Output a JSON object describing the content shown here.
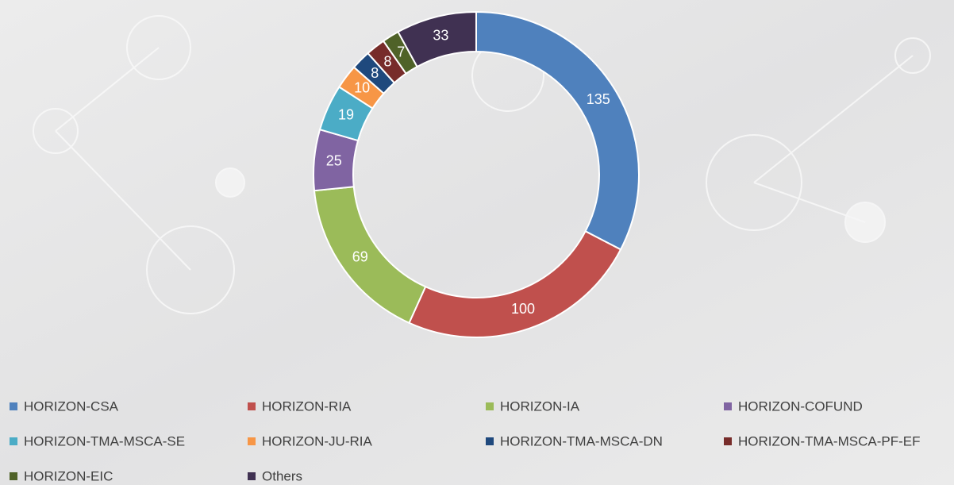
{
  "chart_data": {
    "type": "donut",
    "categories": [
      "HORIZON-CSA",
      "HORIZON-RIA",
      "HORIZON-IA",
      "HORIZON-COFUND",
      "HORIZON-TMA-MSCA-SE",
      "HORIZON-JU-RIA",
      "HORIZON-TMA-MSCA-DN",
      "HORIZON-TMA-MSCA-PF-EF",
      "HORIZON-EIC",
      "Others"
    ],
    "values": [
      135,
      100,
      69,
      25,
      19,
      10,
      8,
      8,
      7,
      33
    ],
    "colors": [
      "#4f81bd",
      "#c0504d",
      "#9bbb59",
      "#8064a2",
      "#4bacc6",
      "#f79646",
      "#1f497d",
      "#772c2a",
      "#4f6228",
      "#403152"
    ],
    "legend": "bottom"
  }
}
